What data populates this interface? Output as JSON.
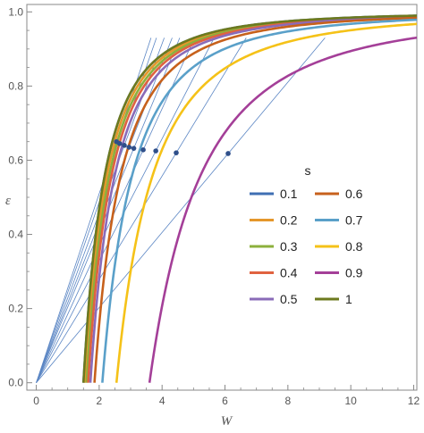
{
  "chart_data": {
    "type": "line",
    "xlabel": "W",
    "ylabel": "ε",
    "xlim": [
      -0.3,
      12.1
    ],
    "ylim": [
      -0.02,
      1.02
    ],
    "x_ticks": [
      0,
      2,
      4,
      6,
      8,
      10,
      12
    ],
    "y_ticks": [
      0.0,
      0.2,
      0.4,
      0.6,
      0.8,
      1.0
    ],
    "x_tick_labels": [
      "0",
      "2",
      "4",
      "6",
      "8",
      "10",
      "12"
    ],
    "y_tick_labels": [
      "0.0",
      "0.2",
      "0.4",
      "0.6",
      "0.8",
      "1.0"
    ],
    "legend_title": "s",
    "legend_placement": "center-right",
    "grid": false,
    "series": [
      {
        "name": "0.1",
        "color": "#3f6fb3",
        "w0": 1.5,
        "point": [
          2.55,
          0.65
        ]
      },
      {
        "name": "0.2",
        "color": "#e5972b",
        "w0": 1.55,
        "point": [
          2.65,
          0.645
        ]
      },
      {
        "name": "0.3",
        "color": "#8cb03c",
        "w0": 1.6,
        "point": [
          2.8,
          0.64
        ]
      },
      {
        "name": "0.4",
        "color": "#e06240",
        "w0": 1.65,
        "point": [
          2.95,
          0.635
        ]
      },
      {
        "name": "0.5",
        "color": "#8a6bb8",
        "w0": 1.72,
        "point": [
          3.1,
          0.632
        ]
      },
      {
        "name": "0.6",
        "color": "#c7611c",
        "w0": 1.85,
        "point": [
          3.4,
          0.628
        ]
      },
      {
        "name": "0.7",
        "color": "#5aa0c9",
        "w0": 2.1,
        "point": [
          3.8,
          0.625
        ]
      },
      {
        "name": "0.8",
        "color": "#f5c218",
        "w0": 2.55,
        "point": [
          4.45,
          0.62
        ]
      },
      {
        "name": "0.9",
        "color": "#a43f98",
        "w0": 3.6,
        "point": [
          6.1,
          0.618
        ]
      },
      {
        "name": "1",
        "color": "#6d7a1e",
        "w0": 1.5,
        "point": null
      }
    ]
  }
}
